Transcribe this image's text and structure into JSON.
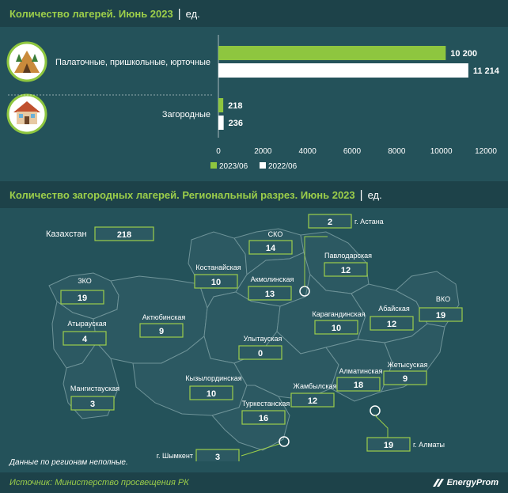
{
  "header1": {
    "title": "Количество лагерей. Июнь 2023",
    "separator": "|",
    "unit": "ед."
  },
  "header2": {
    "title": "Количество загородных лагерей. Региональный разрез. Июнь 2023",
    "separator": "|",
    "unit": "ед."
  },
  "chart_data": [
    {
      "type": "bar",
      "orientation": "horizontal",
      "categories": [
        "Палаточные, пришкольные, юрточные",
        "Загородные"
      ],
      "category_icons": [
        "tent-icon",
        "house-icon"
      ],
      "series": [
        {
          "name": "2023/06",
          "values": [
            10200,
            218
          ],
          "labels": [
            "10 200",
            "218"
          ],
          "color": "#8ec63f"
        },
        {
          "name": "2022/06",
          "values": [
            11214,
            236
          ],
          "labels": [
            "11 214",
            "236"
          ],
          "color": "#ffffff"
        }
      ],
      "xlim": [
        0,
        12000
      ],
      "xticks": [
        "0",
        "2000",
        "4000",
        "6000",
        "8000",
        "10000",
        "12000"
      ],
      "legend_position": "bottom-center"
    },
    {
      "type": "map",
      "total": {
        "label": "Казахстан",
        "value": "218"
      },
      "regions": [
        {
          "name": "СКО",
          "value": "14"
        },
        {
          "name": "г. Астана",
          "value": "2"
        },
        {
          "name": "Павлодарская",
          "value": "12"
        },
        {
          "name": "Костанайская",
          "value": "10"
        },
        {
          "name": "Акмолинская",
          "value": "13"
        },
        {
          "name": "ЗКО",
          "value": "19"
        },
        {
          "name": "Актюбинская",
          "value": "9"
        },
        {
          "name": "Атырауская",
          "value": "4"
        },
        {
          "name": "Карагандинская",
          "value": "10"
        },
        {
          "name": "Абайская",
          "value": "12"
        },
        {
          "name": "ВКО",
          "value": "19"
        },
        {
          "name": "Улытауская",
          "value": "0"
        },
        {
          "name": "Жетысуская",
          "value": "9"
        },
        {
          "name": "Алматинская",
          "value": "18"
        },
        {
          "name": "Кызылординская",
          "value": "10"
        },
        {
          "name": "Жамбылская",
          "value": "12"
        },
        {
          "name": "Мангистауская",
          "value": "3"
        },
        {
          "name": "Туркестанская",
          "value": "16"
        },
        {
          "name": "г. Алматы",
          "value": "19"
        },
        {
          "name": "г. Шымкент",
          "value": "3"
        }
      ]
    }
  ],
  "note": "Данные по регионам неполные.",
  "footer": {
    "source": "Источник: Министерство просвещения РК",
    "brand": "EnergyProm"
  }
}
